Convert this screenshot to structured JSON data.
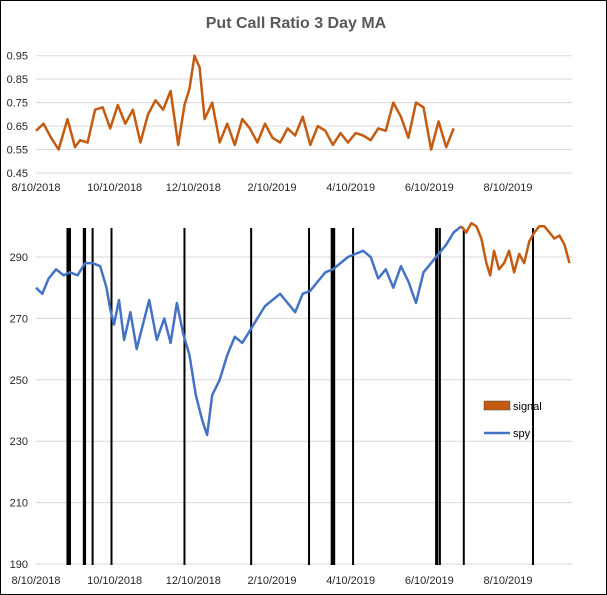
{
  "chart_data": [
    {
      "type": "line",
      "title": "Put Call Ratio 3 Day MA",
      "x_tick_labels": [
        "8/10/2018",
        "10/10/2018",
        "12/10/2018",
        "2/10/2019",
        "4/10/2019",
        "6/10/2019",
        "8/10/2019"
      ],
      "y_tick_labels": [
        "0.45",
        "0.55",
        "0.65",
        "0.75",
        "0.85",
        "0.95"
      ],
      "ylim": [
        0.45,
        1.0
      ],
      "xlim": [
        "2018-08-10",
        "2019-10-10"
      ],
      "grid": true,
      "line_color": "#c55a11",
      "x": [
        "2018-08-10",
        "2018-08-16",
        "2018-08-22",
        "2018-08-28",
        "2018-09-04",
        "2018-09-10",
        "2018-09-14",
        "2018-09-20",
        "2018-09-26",
        "2018-10-02",
        "2018-10-08",
        "2018-10-14",
        "2018-10-20",
        "2018-10-26",
        "2018-11-01",
        "2018-11-07",
        "2018-11-13",
        "2018-11-19",
        "2018-11-25",
        "2018-12-01",
        "2018-12-06",
        "2018-12-10",
        "2018-12-14",
        "2018-12-18",
        "2018-12-22",
        "2018-12-28",
        "2019-01-03",
        "2019-01-09",
        "2019-01-15",
        "2019-01-21",
        "2019-01-27",
        "2019-02-02",
        "2019-02-08",
        "2019-02-14",
        "2019-02-20",
        "2019-02-26",
        "2019-03-04",
        "2019-03-10",
        "2019-03-16",
        "2019-03-22",
        "2019-03-28",
        "2019-04-03",
        "2019-04-09",
        "2019-04-15",
        "2019-04-21",
        "2019-04-27",
        "2019-05-03",
        "2019-05-09",
        "2019-05-15",
        "2019-05-21",
        "2019-05-27",
        "2019-06-02",
        "2019-06-08",
        "2019-06-14",
        "2019-06-20",
        "2019-06-26",
        "2019-07-02",
        "2019-07-08"
      ],
      "y": [
        0.63,
        0.66,
        0.6,
        0.55,
        0.68,
        0.56,
        0.59,
        0.58,
        0.72,
        0.73,
        0.64,
        0.74,
        0.66,
        0.72,
        0.58,
        0.7,
        0.76,
        0.72,
        0.8,
        0.57,
        0.74,
        0.81,
        0.95,
        0.9,
        0.68,
        0.75,
        0.58,
        0.66,
        0.57,
        0.68,
        0.64,
        0.58,
        0.66,
        0.6,
        0.58,
        0.64,
        0.61,
        0.69,
        0.57,
        0.65,
        0.63,
        0.57,
        0.62,
        0.58,
        0.62,
        0.61,
        0.59,
        0.64,
        0.63,
        0.75,
        0.69,
        0.6,
        0.75,
        0.73,
        0.55,
        0.67,
        0.56,
        0.64
      ],
      "series_name": ""
    },
    {
      "type": "line",
      "x_tick_labels": [
        "8/10/2018",
        "10/10/2018",
        "12/10/2018",
        "2/10/2019",
        "4/10/2019",
        "6/10/2019",
        "8/10/2019"
      ],
      "y_tick_labels": [
        "190",
        "210",
        "230",
        "250",
        "270",
        "290"
      ],
      "ylim": [
        190,
        304
      ],
      "xlim": [
        "2018-08-10",
        "2019-10-10"
      ],
      "grid": true,
      "legend": [
        {
          "label": "signal",
          "color": "#c55a11",
          "marker": "box"
        },
        {
          "label": "spy",
          "color": "#4472c4",
          "marker": "line"
        }
      ],
      "legend_placement": "right",
      "series": [
        {
          "name": "spy",
          "color": "#4472c4",
          "x": [
            "2018-08-10",
            "2018-08-15",
            "2018-08-20",
            "2018-08-26",
            "2018-09-01",
            "2018-09-06",
            "2018-09-12",
            "2018-09-18",
            "2018-09-24",
            "2018-09-30",
            "2018-10-05",
            "2018-10-08",
            "2018-10-11",
            "2018-10-15",
            "2018-10-19",
            "2018-10-24",
            "2018-10-29",
            "2018-11-03",
            "2018-11-08",
            "2018-11-14",
            "2018-11-20",
            "2018-11-25",
            "2018-11-30",
            "2018-12-05",
            "2018-12-10",
            "2018-12-15",
            "2018-12-20",
            "2018-12-24",
            "2018-12-28",
            "2019-01-03",
            "2019-01-09",
            "2019-01-15",
            "2019-01-21",
            "2019-01-27",
            "2019-02-02",
            "2019-02-08",
            "2019-02-14",
            "2019-02-20",
            "2019-02-26",
            "2019-03-04",
            "2019-03-10",
            "2019-03-16",
            "2019-03-22",
            "2019-03-28",
            "2019-04-03",
            "2019-04-09",
            "2019-04-15",
            "2019-04-21",
            "2019-04-27",
            "2019-05-03",
            "2019-05-09",
            "2019-05-15",
            "2019-05-21",
            "2019-05-27",
            "2019-06-02",
            "2019-06-08",
            "2019-06-14",
            "2019-06-20",
            "2019-06-26",
            "2019-07-02",
            "2019-07-08",
            "2019-07-14"
          ],
          "y": [
            280,
            278,
            283,
            286,
            284,
            285,
            284,
            288,
            288,
            287,
            280,
            273,
            268,
            276,
            263,
            272,
            260,
            268,
            276,
            263,
            270,
            262,
            275,
            265,
            258,
            245,
            237,
            232,
            245,
            250,
            258,
            264,
            262,
            266,
            270,
            274,
            276,
            278,
            275,
            272,
            278,
            279,
            282,
            285,
            286,
            288,
            290,
            291,
            292,
            290,
            283,
            286,
            280,
            287,
            282,
            275,
            285,
            288,
            291,
            294,
            298,
            300
          ]
        },
        {
          "name": "signal",
          "color": "#c55a11",
          "x": [
            "2019-07-14",
            "2019-07-18",
            "2019-07-22",
            "2019-07-26",
            "2019-07-30",
            "2019-08-03",
            "2019-08-06",
            "2019-08-09",
            "2019-08-13",
            "2019-08-17",
            "2019-08-21",
            "2019-08-25",
            "2019-08-29",
            "2019-09-02",
            "2019-09-06",
            "2019-09-10",
            "2019-09-14",
            "2019-09-18",
            "2019-09-22",
            "2019-09-26",
            "2019-09-30",
            "2019-10-04",
            "2019-10-08"
          ],
          "y": [
            300,
            298,
            301,
            300,
            296,
            288,
            284,
            292,
            286,
            288,
            292,
            285,
            291,
            288,
            295,
            298,
            300,
            300,
            298,
            296,
            297,
            294,
            288
          ]
        }
      ],
      "signal_dates": [
        "2018-09-04",
        "2018-09-05",
        "2018-09-06",
        "2018-09-17",
        "2018-09-18",
        "2018-09-24",
        "2018-10-09",
        "2018-12-06",
        "2019-01-28",
        "2019-03-15",
        "2019-04-02",
        "2019-04-03",
        "2019-04-04",
        "2019-04-19",
        "2019-06-24",
        "2019-06-25",
        "2019-06-27",
        "2019-07-16",
        "2019-09-09"
      ]
    }
  ]
}
